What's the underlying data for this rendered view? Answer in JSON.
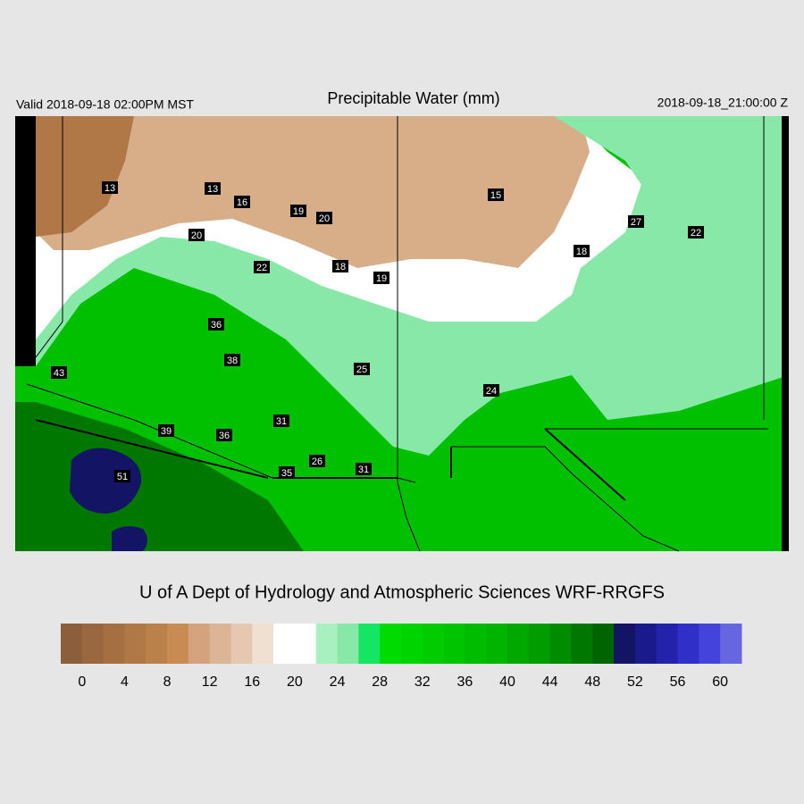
{
  "header": {
    "valid": "Valid 2018-09-18 02:00PM MST",
    "title": "Precipitable Water (mm)",
    "timestamp": "2018-09-18_21:00:00 Z"
  },
  "map": {
    "station_values": [
      13,
      13,
      16,
      19,
      20,
      20,
      22,
      18,
      19,
      15,
      27,
      22,
      18,
      36,
      38,
      25,
      24,
      43,
      39,
      36,
      31,
      35,
      26,
      31,
      51
    ]
  },
  "footer": "U of A Dept of Hydrology and Atmospheric Sciences WRF-RRGFS",
  "colorbar": {
    "lim": [
      -2,
      62
    ],
    "colors": [
      "#8b5e3c",
      "#9a6840",
      "#a56f42",
      "#b07846",
      "#bb814a",
      "#c88c52",
      "#d4a27c",
      "#dcb496",
      "#e6c8b2",
      "#f0e0d2",
      "#ffffff",
      "#ffffff",
      "#a8f0c0",
      "#88e8a8",
      "#14e664",
      "#00dc00",
      "#00d400",
      "#00cc00",
      "#00c400",
      "#00bc00",
      "#00b400",
      "#00a800",
      "#009c00",
      "#008c00",
      "#007800",
      "#006400",
      "#141464",
      "#1a1a8c",
      "#2222aa",
      "#3030c8",
      "#4444dc",
      "#6666e0"
    ],
    "ticks": [
      0,
      4,
      8,
      12,
      16,
      20,
      24,
      28,
      32,
      36,
      40,
      44,
      48,
      52,
      56,
      60
    ]
  }
}
